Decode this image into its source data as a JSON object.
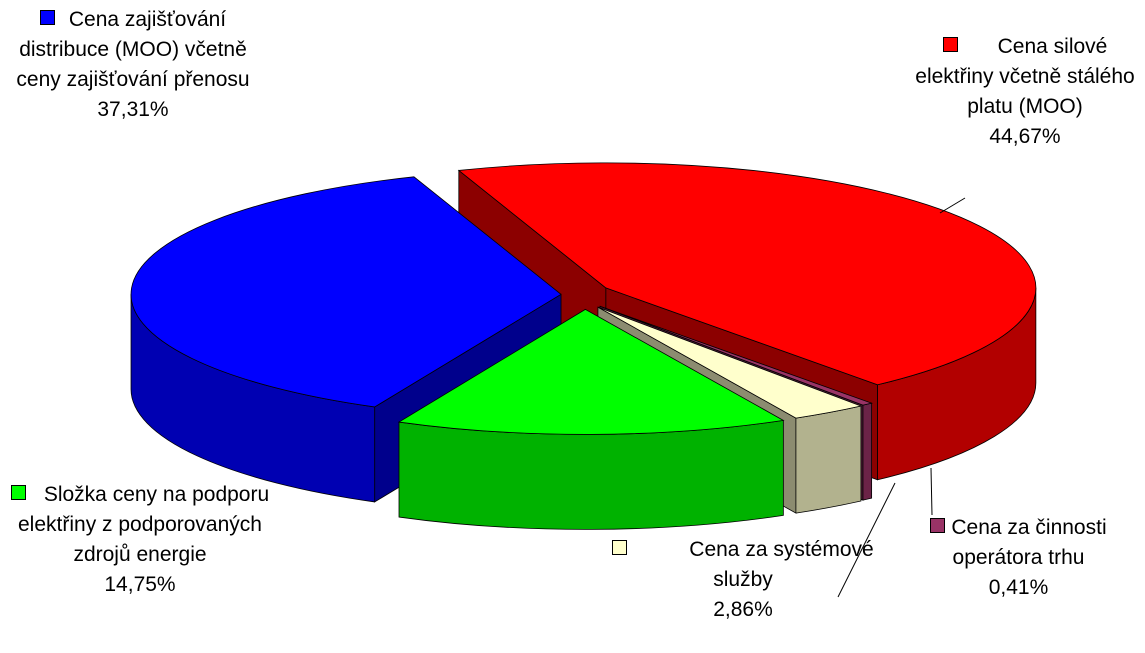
{
  "chart_data": {
    "type": "pie3d",
    "categories": [
      "Cena silové elektřiny včetně stálého platu (MOO)",
      "Cena za činnosti operátora trhu",
      "Cena za systémové služby",
      "Složka ceny na podporu elektřiny z podporovaných zdrojů energie",
      "Cena zajišťování distribuce (MOO) včetně ceny zajišťování přenosu"
    ],
    "values": [
      44.67,
      0.41,
      2.86,
      14.75,
      37.31
    ],
    "value_labels": [
      "44,67%",
      "0,41%",
      "2,86%",
      "14,75%",
      "37,31%"
    ],
    "colors": [
      "#ff0000",
      "#993366",
      "#ffffcc",
      "#00ff00",
      "#0000ff"
    ]
  }
}
